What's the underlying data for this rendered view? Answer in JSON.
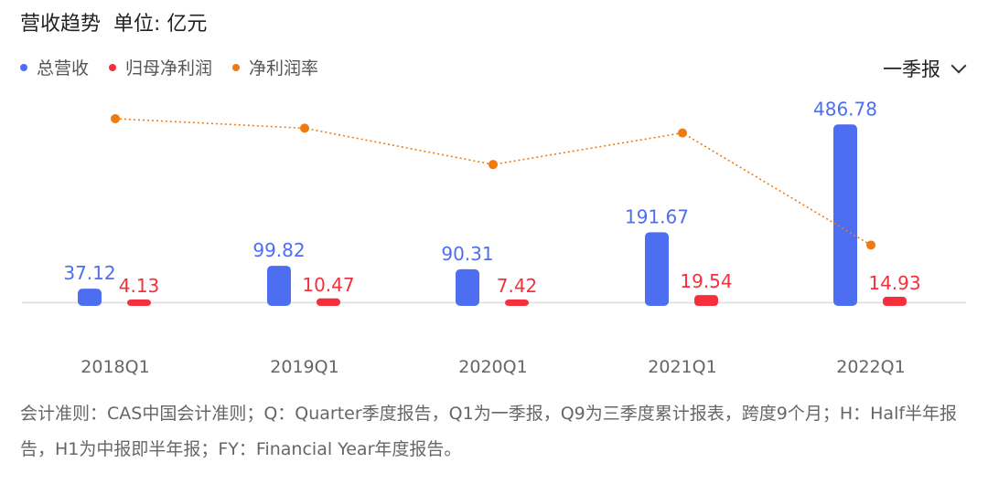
{
  "header": {
    "title": "营收趋势",
    "unit": "单位: 亿元"
  },
  "period_select": {
    "label": "一季报"
  },
  "colors": {
    "revenue": "#4e6ef2",
    "net_profit": "#f5303c",
    "margin": "#f07a12",
    "axis": "#dddddd",
    "tick": "#666666"
  },
  "chart_data": {
    "type": "bar",
    "categories": [
      "2018Q1",
      "2019Q1",
      "2020Q1",
      "2021Q1",
      "2022Q1"
    ],
    "series": [
      {
        "name": "总营收",
        "type": "bar",
        "values": [
          37.12,
          99.82,
          90.31,
          191.67,
          486.78
        ],
        "labels": [
          "37.12",
          "99.82",
          "90.31",
          "191.67",
          "486.78"
        ]
      },
      {
        "name": "归母净利润",
        "type": "bar",
        "values": [
          4.13,
          10.47,
          7.42,
          19.54,
          14.93
        ],
        "labels": [
          "4.13",
          "10.47",
          "7.42",
          "19.54",
          "14.93"
        ]
      },
      {
        "name": "净利润率",
        "type": "line",
        "style": "dotted",
        "values": [
          11.1,
          10.5,
          8.2,
          10.2,
          3.1
        ]
      }
    ],
    "ylim": [
      0,
      500
    ],
    "grid": false,
    "legend": "top-left"
  },
  "footnote": "会计准则：CAS中国会计准则；Q：Quarter季度报告，Q1为一季报，Q9为三季度累计报表，跨度9个月；H：Half半年报告，H1为中报即半年报；FY：Financial Year年度报告。"
}
